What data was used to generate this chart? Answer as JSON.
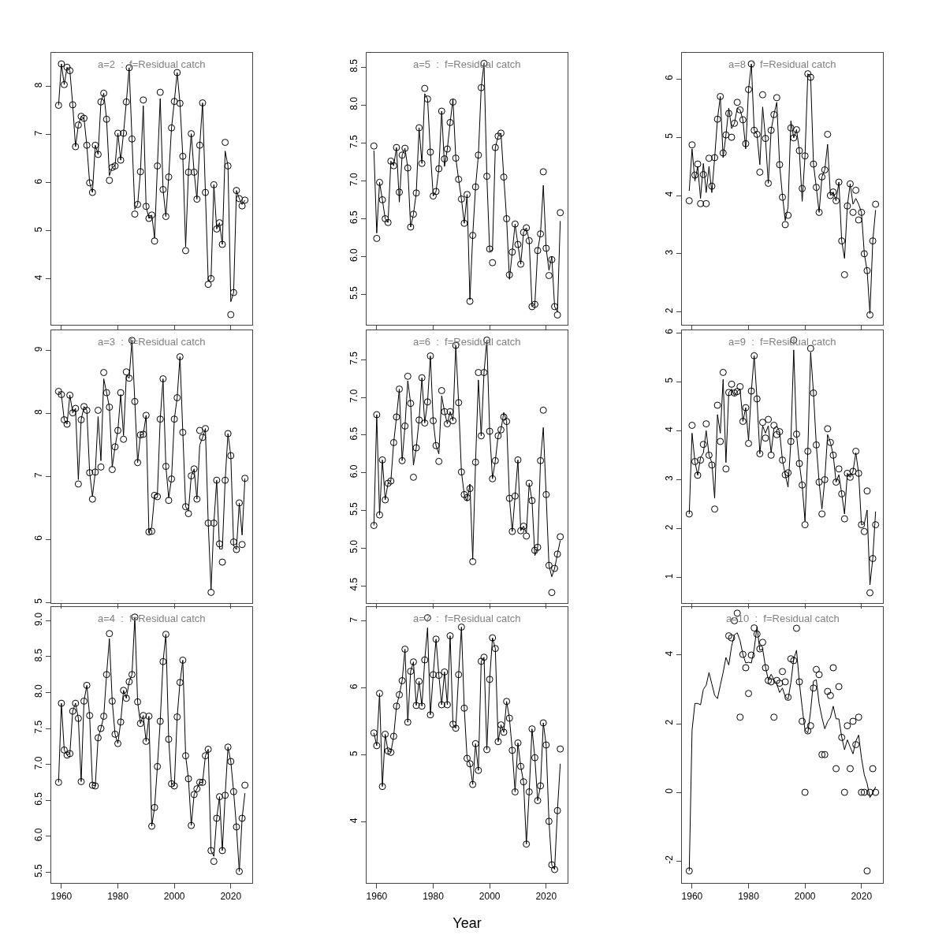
{
  "chart_data": [
    {
      "type": "scatter",
      "title": "a=2  :  f=Residual catch",
      "x": [
        1959,
        1960,
        1961,
        1962,
        1963,
        1964,
        1965,
        1966,
        1967,
        1968,
        1969,
        1970,
        1971,
        1972,
        1973,
        1974,
        1975,
        1976,
        1977,
        1978,
        1979,
        1980,
        1981,
        1982,
        1983,
        1984,
        1985,
        1986,
        1987,
        1988,
        1989,
        1990,
        1991,
        1992,
        1993,
        1994,
        1995,
        1996,
        1997,
        1998,
        1999,
        2000,
        2001,
        2002,
        2003,
        2004,
        2005,
        2006,
        2007,
        2008,
        2009,
        2010,
        2011,
        2012,
        2013,
        2014,
        2015,
        2016,
        2017,
        2018,
        2019,
        2020,
        2021,
        2022,
        2023,
        2024,
        2025
      ],
      "series": [
        {
          "type": "scatter",
          "marker": "circle",
          "color": "#000000",
          "values": [
            7.61,
            8.47,
            8.04,
            8.4,
            8.33,
            7.62,
            6.75,
            7.2,
            7.38,
            7.34,
            6.78,
            6.0,
            5.8,
            6.78,
            6.59,
            7.68,
            7.86,
            7.32,
            6.05,
            6.32,
            6.35,
            7.03,
            6.47,
            7.03,
            7.68,
            8.39,
            6.91,
            5.35,
            5.55,
            6.23,
            7.72,
            5.51,
            5.26,
            5.33,
            4.79,
            6.35,
            7.88,
            5.86,
            5.3,
            6.12,
            7.14,
            7.69,
            8.29,
            7.65,
            6.55,
            4.59,
            6.22,
            7.02,
            6.22,
            5.66,
            6.78,
            7.66,
            5.8,
            3.89,
            4.01,
            5.96,
            5.04,
            5.17,
            4.72,
            6.84,
            6.35,
            3.26,
            3.72,
            5.84,
            5.67,
            5.52,
            5.64
          ]
        },
        {
          "type": "line",
          "marker": "none",
          "color": "#000000",
          "values": [
            7.61,
            8.47,
            8.04,
            8.4,
            8.33,
            7.62,
            6.75,
            7.2,
            7.38,
            7.34,
            6.78,
            6.0,
            5.8,
            6.78,
            6.59,
            7.68,
            7.86,
            7.32,
            6.15,
            6.32,
            6.35,
            7.03,
            6.47,
            7.03,
            7.68,
            8.39,
            6.91,
            5.45,
            5.55,
            6.23,
            7.6,
            5.51,
            5.26,
            5.33,
            4.85,
            6.35,
            7.75,
            5.86,
            5.3,
            6.12,
            7.14,
            7.69,
            8.29,
            7.65,
            6.55,
            4.67,
            6.22,
            7.02,
            6.22,
            5.66,
            6.78,
            7.66,
            5.8,
            3.95,
            4.01,
            5.96,
            5.04,
            5.17,
            4.72,
            6.66,
            6.35,
            3.53,
            3.72,
            5.84,
            5.67,
            5.55,
            5.64
          ]
        }
      ],
      "xlim": [
        1956.4,
        2027.6
      ],
      "xticks": [
        1960,
        1980,
        2000,
        2020
      ],
      "ylim": [
        3.05,
        8.7
      ],
      "yticks": [
        4,
        5,
        6,
        7,
        8
      ],
      "tick_labels": "y",
      "grid": false
    },
    {
      "type": "scatter",
      "title": "a=5  :  f=Residual catch",
      "x": [
        1959,
        1960,
        1961,
        1962,
        1963,
        1964,
        1965,
        1966,
        1967,
        1968,
        1969,
        1970,
        1971,
        1972,
        1973,
        1974,
        1975,
        1976,
        1977,
        1978,
        1979,
        1980,
        1981,
        1982,
        1983,
        1984,
        1985,
        1986,
        1987,
        1988,
        1989,
        1990,
        1991,
        1992,
        1993,
        1994,
        1995,
        1996,
        1997,
        1998,
        1999,
        2000,
        2001,
        2002,
        2003,
        2004,
        2005,
        2006,
        2007,
        2008,
        2009,
        2010,
        2011,
        2012,
        2013,
        2014,
        2015,
        2016,
        2017,
        2018,
        2019,
        2020,
        2021,
        2022,
        2023,
        2024,
        2025
      ],
      "series": [
        {
          "type": "scatter",
          "marker": "circle",
          "color": "#000000",
          "values": [
            7.46,
            6.24,
            6.98,
            6.75,
            6.5,
            6.45,
            7.26,
            7.2,
            7.44,
            6.85,
            7.34,
            7.43,
            7.17,
            6.39,
            6.56,
            6.84,
            7.7,
            7.23,
            8.22,
            8.08,
            7.38,
            6.8,
            6.86,
            7.16,
            7.92,
            7.29,
            7.42,
            7.77,
            8.04,
            7.3,
            7.02,
            6.76,
            6.44,
            6.82,
            5.41,
            6.28,
            6.92,
            7.34,
            8.23,
            8.55,
            7.06,
            6.1,
            5.92,
            7.44,
            7.59,
            7.63,
            7.05,
            6.5,
            5.76,
            6.06,
            6.43,
            6.16,
            5.9,
            6.32,
            6.38,
            6.21,
            5.34,
            5.37,
            6.08,
            6.3,
            7.12,
            6.11,
            5.75,
            5.96,
            5.34,
            5.23,
            6.58
          ]
        },
        {
          "type": "line",
          "marker": "none",
          "color": "#000000",
          "values": [
            7.4,
            6.31,
            6.98,
            6.75,
            6.5,
            6.45,
            7.26,
            7.2,
            7.44,
            6.72,
            7.34,
            7.43,
            7.17,
            6.39,
            6.56,
            6.84,
            7.7,
            7.23,
            8.15,
            8.08,
            7.38,
            6.8,
            6.86,
            7.16,
            7.92,
            7.19,
            7.42,
            7.77,
            8.08,
            7.3,
            7.02,
            6.76,
            6.44,
            6.82,
            5.43,
            6.28,
            6.92,
            7.34,
            8.23,
            8.55,
            7.06,
            6.07,
            6.09,
            7.44,
            7.59,
            7.63,
            7.05,
            6.5,
            5.7,
            6.06,
            6.43,
            6.16,
            5.9,
            6.32,
            6.38,
            6.21,
            5.34,
            5.37,
            6.08,
            6.3,
            6.94,
            6.11,
            5.82,
            6.0,
            5.34,
            5.27,
            6.47
          ]
        }
      ],
      "xlim": [
        1956.4,
        2027.6
      ],
      "xticks": [
        1960,
        1980,
        2000,
        2020
      ],
      "ylim": [
        5.1,
        8.69
      ],
      "yticks": [
        5.5,
        {
          "value": 6,
          "label": "6.0"
        },
        6.5,
        {
          "value": 7,
          "label": "7.0"
        },
        7.5,
        {
          "value": 8,
          "label": "8.0"
        },
        8.5
      ],
      "tick_labels": "y",
      "grid": false
    },
    {
      "type": "scatter",
      "title": "a=8  :  f=Residual catch",
      "x": [
        1959,
        1960,
        1961,
        1962,
        1963,
        1964,
        1965,
        1966,
        1967,
        1968,
        1969,
        1970,
        1971,
        1972,
        1973,
        1974,
        1975,
        1976,
        1977,
        1978,
        1979,
        1980,
        1981,
        1982,
        1983,
        1984,
        1985,
        1986,
        1987,
        1988,
        1989,
        1990,
        1991,
        1992,
        1993,
        1994,
        1995,
        1996,
        1997,
        1998,
        1999,
        2000,
        2001,
        2002,
        2003,
        2004,
        2005,
        2006,
        2007,
        2008,
        2009,
        2010,
        2011,
        2012,
        2013,
        2014,
        2015,
        2016,
        2017,
        2018,
        2019,
        2020,
        2021,
        2022,
        2023,
        2024,
        2025
      ],
      "series": [
        {
          "type": "scatter",
          "marker": "circle",
          "color": "#000000",
          "values": [
            3.91,
            4.87,
            4.35,
            4.54,
            3.86,
            4.36,
            3.86,
            4.64,
            4.16,
            4.65,
            5.31,
            5.7,
            4.73,
            5.04,
            5.41,
            5.0,
            5.24,
            5.6,
            5.47,
            5.3,
            4.89,
            5.82,
            6.26,
            5.12,
            5.05,
            4.4,
            5.73,
            4.98,
            4.21,
            5.12,
            5.39,
            5.68,
            4.53,
            3.97,
            3.5,
            3.66,
            5.16,
            4.99,
            5.13,
            4.77,
            4.12,
            4.68,
            6.09,
            6.03,
            4.54,
            4.14,
            3.71,
            4.32,
            4.44,
            5.05,
            4.0,
            4.06,
            3.91,
            4.23,
            3.22,
            2.64,
            3.82,
            4.2,
            3.71,
            4.09,
            3.58,
            3.71,
            3.0,
            2.71,
            1.95,
            3.22,
            3.85
          ]
        },
        {
          "type": "line",
          "marker": "none",
          "color": "#000000",
          "values": [
            4.08,
            4.8,
            4.25,
            4.5,
            3.95,
            4.55,
            4.05,
            4.5,
            4.05,
            4.65,
            5.31,
            5.7,
            4.65,
            5.04,
            5.5,
            5.15,
            5.24,
            5.5,
            5.47,
            5.3,
            4.8,
            5.82,
            6.26,
            5.12,
            5.05,
            4.53,
            5.52,
            4.98,
            4.21,
            5.12,
            5.39,
            5.6,
            4.53,
            4.0,
            3.57,
            3.8,
            5.28,
            4.99,
            5.13,
            4.77,
            3.9,
            4.68,
            6.09,
            6.03,
            4.54,
            4.14,
            3.71,
            4.32,
            4.44,
            4.88,
            4.0,
            4.06,
            3.91,
            4.23,
            3.22,
            2.92,
            3.82,
            4.2,
            3.85,
            3.95,
            3.85,
            3.71,
            3.0,
            2.71,
            1.97,
            3.22,
            3.75
          ]
        }
      ],
      "xlim": [
        1956.4,
        2027.6
      ],
      "xticks": [
        1960,
        1980,
        2000,
        2020
      ],
      "ylim": [
        1.78,
        6.45
      ],
      "yticks": [
        2,
        3,
        4,
        5,
        6
      ],
      "tick_labels": "y",
      "grid": false
    },
    {
      "type": "scatter",
      "title": "a=3  :  f=Residual catch",
      "x": [
        1959,
        1960,
        1961,
        1962,
        1963,
        1964,
        1965,
        1966,
        1967,
        1968,
        1969,
        1970,
        1971,
        1972,
        1973,
        1974,
        1975,
        1976,
        1977,
        1978,
        1979,
        1980,
        1981,
        1982,
        1983,
        1984,
        1985,
        1986,
        1987,
        1988,
        1989,
        1990,
        1991,
        1992,
        1993,
        1994,
        1995,
        1996,
        1997,
        1998,
        1999,
        2000,
        2001,
        2002,
        2003,
        2004,
        2005,
        2006,
        2007,
        2008,
        2009,
        2010,
        2011,
        2012,
        2013,
        2014,
        2015,
        2016,
        2017,
        2018,
        2019,
        2020,
        2021,
        2022,
        2023,
        2024,
        2025
      ],
      "series": [
        {
          "type": "scatter",
          "marker": "circle",
          "color": "#000000",
          "values": [
            8.35,
            8.3,
            7.9,
            7.83,
            8.29,
            8.01,
            8.08,
            6.88,
            7.9,
            8.11,
            8.05,
            7.06,
            6.64,
            7.07,
            8.05,
            7.15,
            8.65,
            8.33,
            8.1,
            7.11,
            7.47,
            7.73,
            8.33,
            7.59,
            8.66,
            8.56,
            9.16,
            8.19,
            7.22,
            7.66,
            7.67,
            7.97,
            6.12,
            6.13,
            6.7,
            6.68,
            7.91,
            8.55,
            7.16,
            6.62,
            6.96,
            7.91,
            8.25,
            8.9,
            7.7,
            6.52,
            6.41,
            7.01,
            7.12,
            6.64,
            7.73,
            7.62,
            7.76,
            6.26,
            5.16,
            6.26,
            6.94,
            5.93,
            5.64,
            6.94,
            7.68,
            7.33,
            5.96,
            5.84,
            6.58,
            5.92,
            6.97
          ]
        },
        {
          "type": "line",
          "marker": "none",
          "color": "#000000",
          "values": [
            8.35,
            8.3,
            7.9,
            7.83,
            8.29,
            8.01,
            8.08,
            6.95,
            7.9,
            8.11,
            8.05,
            7.06,
            6.68,
            7.07,
            7.95,
            7.25,
            8.55,
            8.33,
            8.1,
            7.15,
            7.47,
            7.73,
            8.3,
            7.65,
            8.6,
            8.56,
            9.16,
            8.19,
            7.22,
            7.66,
            7.67,
            7.97,
            6.1,
            6.2,
            6.7,
            6.72,
            7.91,
            8.55,
            7.16,
            6.66,
            6.96,
            7.91,
            8.25,
            8.9,
            7.7,
            6.52,
            6.45,
            7.01,
            7.12,
            6.64,
            7.5,
            7.62,
            7.76,
            6.26,
            5.2,
            6.26,
            6.94,
            5.85,
            5.85,
            6.94,
            7.68,
            7.33,
            5.9,
            5.84,
            6.58,
            6.07,
            6.97
          ]
        }
      ],
      "xlim": [
        1956.4,
        2027.6
      ],
      "xticks": [
        1960,
        1980,
        2000,
        2020
      ],
      "ylim": [
        4.99,
        9.32
      ],
      "yticks": [
        5,
        6,
        7,
        8,
        9
      ],
      "tick_labels": "y",
      "grid": false
    },
    {
      "type": "scatter",
      "title": "a=6  :  f=Residual catch",
      "x": [
        1959,
        1960,
        1961,
        1962,
        1963,
        1964,
        1965,
        1966,
        1967,
        1968,
        1969,
        1970,
        1971,
        1972,
        1973,
        1974,
        1975,
        1976,
        1977,
        1978,
        1979,
        1980,
        1981,
        1982,
        1983,
        1984,
        1985,
        1986,
        1987,
        1988,
        1989,
        1990,
        1991,
        1992,
        1993,
        1994,
        1995,
        1996,
        1997,
        1998,
        1999,
        2000,
        2001,
        2002,
        2003,
        2004,
        2005,
        2006,
        2007,
        2008,
        2009,
        2010,
        2011,
        2012,
        2013,
        2014,
        2015,
        2016,
        2017,
        2018,
        2019,
        2020,
        2021,
        2022,
        2023,
        2024,
        2025
      ],
      "series": [
        {
          "type": "scatter",
          "marker": "circle",
          "color": "#000000",
          "values": [
            5.3,
            6.77,
            5.44,
            6.17,
            5.64,
            5.86,
            5.89,
            6.4,
            6.74,
            7.11,
            6.16,
            6.62,
            7.28,
            6.92,
            5.94,
            6.33,
            6.7,
            7.26,
            6.66,
            6.94,
            7.55,
            6.69,
            6.36,
            6.15,
            7.09,
            6.81,
            6.65,
            6.81,
            6.69,
            7.69,
            6.93,
            6.01,
            5.71,
            5.67,
            5.79,
            4.82,
            6.14,
            7.33,
            6.49,
            7.33,
            7.76,
            6.55,
            5.92,
            6.16,
            6.49,
            6.57,
            6.74,
            6.68,
            5.66,
            5.22,
            5.69,
            6.17,
            5.23,
            5.29,
            5.16,
            5.86,
            5.63,
            4.97,
            5.01,
            6.16,
            6.83,
            5.71,
            4.77,
            4.41,
            4.73,
            4.92,
            5.15
          ]
        },
        {
          "type": "line",
          "marker": "none",
          "color": "#000000",
          "values": [
            5.3,
            6.77,
            5.44,
            6.17,
            5.64,
            5.86,
            5.89,
            6.4,
            6.74,
            7.11,
            6.16,
            6.62,
            7.22,
            6.92,
            6.1,
            6.33,
            6.7,
            7.26,
            6.66,
            6.94,
            7.55,
            6.69,
            6.36,
            6.25,
            7.02,
            6.81,
            6.65,
            6.81,
            6.69,
            7.69,
            6.93,
            6.01,
            5.71,
            5.62,
            5.85,
            4.85,
            6.14,
            7.23,
            6.49,
            7.33,
            7.76,
            6.55,
            5.92,
            6.16,
            6.49,
            6.57,
            6.8,
            6.68,
            5.66,
            5.22,
            5.69,
            6.17,
            5.23,
            5.29,
            5.2,
            5.86,
            5.63,
            4.9,
            5.01,
            6.16,
            6.6,
            5.71,
            4.77,
            4.62,
            4.73,
            4.92,
            5.1
          ]
        }
      ],
      "xlim": [
        1956.4,
        2027.6
      ],
      "xticks": [
        1960,
        1980,
        2000,
        2020
      ],
      "ylim": [
        4.27,
        7.89
      ],
      "yticks": [
        4.5,
        {
          "value": 5,
          "label": "5.0"
        },
        5.5,
        {
          "value": 6,
          "label": "6.0"
        },
        6.5,
        {
          "value": 7,
          "label": "7.0"
        },
        7.5
      ],
      "tick_labels": "y",
      "grid": false
    },
    {
      "type": "scatter",
      "title": "a=9  :  f=Residual catch",
      "x": [
        1959,
        1960,
        1961,
        1962,
        1963,
        1964,
        1965,
        1966,
        1967,
        1968,
        1969,
        1970,
        1971,
        1972,
        1973,
        1974,
        1975,
        1976,
        1977,
        1978,
        1979,
        1980,
        1981,
        1982,
        1983,
        1984,
        1985,
        1986,
        1987,
        1988,
        1989,
        1990,
        1991,
        1992,
        1993,
        1994,
        1995,
        1996,
        1997,
        1998,
        1999,
        2000,
        2001,
        2002,
        2003,
        2004,
        2005,
        2006,
        2007,
        2008,
        2009,
        2010,
        2011,
        2012,
        2013,
        2014,
        2015,
        2016,
        2017,
        2018,
        2019,
        2020,
        2021,
        2022,
        2023,
        2024,
        2025
      ],
      "series": [
        {
          "type": "scatter",
          "marker": "circle",
          "color": "#000000",
          "values": [
            2.3,
            4.11,
            3.37,
            3.09,
            3.4,
            3.72,
            4.14,
            3.5,
            3.3,
            2.4,
            4.52,
            3.78,
            5.19,
            3.22,
            4.78,
            4.95,
            4.77,
            4.8,
            4.9,
            4.19,
            4.47,
            3.74,
            4.81,
            5.53,
            4.65,
            3.53,
            4.17,
            3.85,
            4.23,
            3.5,
            4.11,
            3.92,
            3.98,
            3.4,
            3.1,
            3.14,
            3.78,
            5.85,
            3.93,
            3.33,
            2.89,
            2.08,
            3.58,
            5.68,
            4.77,
            3.71,
            2.95,
            2.3,
            3.0,
            4.04,
            3.76,
            3.5,
            2.95,
            3.22,
            2.71,
            2.2,
            3.13,
            3.05,
            3.17,
            3.58,
            3.13,
            2.08,
            1.94,
            2.77,
            0.69,
            1.39,
            2.08
          ]
        },
        {
          "type": "line",
          "marker": "none",
          "color": "#000000",
          "values": [
            2.3,
            3.95,
            3.37,
            3.09,
            3.45,
            3.55,
            4.0,
            3.5,
            3.35,
            2.62,
            4.33,
            3.95,
            5.05,
            3.35,
            4.78,
            4.85,
            4.72,
            4.8,
            4.85,
            4.19,
            4.47,
            3.8,
            4.81,
            5.53,
            4.65,
            3.53,
            4.1,
            3.95,
            4.1,
            3.55,
            4.05,
            4.1,
            3.98,
            3.4,
            3.1,
            2.85,
            3.78,
            5.65,
            3.93,
            3.33,
            2.89,
            2.15,
            3.58,
            5.6,
            4.77,
            3.71,
            2.95,
            2.4,
            3.0,
            3.92,
            3.76,
            3.5,
            2.95,
            3.1,
            2.71,
            2.3,
            3.13,
            3.05,
            3.17,
            3.55,
            3.13,
            2.08,
            2.1,
            2.38,
            0.85,
            1.39,
            2.35
          ]
        }
      ],
      "xlim": [
        1956.4,
        2027.6
      ],
      "xticks": [
        1960,
        1980,
        2000,
        2020
      ],
      "ylim": [
        0.48,
        6.05
      ],
      "yticks": [
        1,
        2,
        3,
        4,
        5,
        6
      ],
      "tick_labels": "y",
      "grid": false
    },
    {
      "type": "scatter",
      "title": "a=4  :  f=Residual catch",
      "x": [
        1959,
        1960,
        1961,
        1962,
        1963,
        1964,
        1965,
        1966,
        1967,
        1968,
        1969,
        1970,
        1971,
        1972,
        1973,
        1974,
        1975,
        1976,
        1977,
        1978,
        1979,
        1980,
        1981,
        1982,
        1983,
        1984,
        1985,
        1986,
        1987,
        1988,
        1989,
        1990,
        1991,
        1992,
        1993,
        1994,
        1995,
        1996,
        1997,
        1998,
        1999,
        2000,
        2001,
        2002,
        2003,
        2004,
        2005,
        2006,
        2007,
        2008,
        2009,
        2010,
        2011,
        2012,
        2013,
        2014,
        2015,
        2016,
        2017,
        2018,
        2019,
        2020,
        2021,
        2022,
        2023,
        2024,
        2025
      ],
      "series": [
        {
          "type": "scatter",
          "marker": "circle",
          "color": "#000000",
          "values": [
            6.75,
            7.85,
            7.2,
            7.13,
            7.15,
            7.74,
            7.85,
            7.64,
            6.76,
            7.88,
            8.1,
            7.68,
            6.71,
            6.7,
            7.37,
            7.5,
            7.67,
            8.25,
            8.82,
            7.88,
            7.42,
            7.29,
            7.59,
            8.03,
            7.92,
            8.15,
            8.25,
            9.05,
            7.87,
            7.57,
            7.68,
            7.32,
            7.67,
            6.14,
            6.4,
            6.97,
            7.6,
            8.43,
            8.81,
            7.35,
            6.73,
            6.7,
            7.66,
            8.14,
            8.45,
            7.12,
            6.8,
            6.15,
            6.58,
            6.66,
            6.75,
            6.75,
            7.12,
            7.21,
            5.8,
            5.65,
            6.25,
            6.55,
            5.8,
            6.57,
            7.24,
            7.04,
            6.62,
            6.13,
            5.51,
            6.25,
            6.71
          ]
        },
        {
          "type": "line",
          "marker": "none",
          "color": "#000000",
          "values": [
            6.75,
            7.85,
            7.2,
            7.13,
            7.15,
            7.74,
            7.85,
            7.64,
            6.76,
            7.88,
            8.1,
            7.68,
            6.71,
            6.7,
            7.37,
            7.5,
            7.67,
            8.25,
            8.75,
            7.88,
            7.42,
            7.29,
            7.59,
            8.03,
            7.92,
            8.15,
            8.25,
            9.05,
            7.87,
            7.57,
            7.68,
            7.32,
            7.67,
            6.14,
            6.4,
            6.97,
            7.6,
            8.43,
            8.81,
            7.35,
            6.73,
            6.7,
            7.66,
            8.14,
            8.45,
            7.12,
            6.8,
            6.15,
            6.58,
            6.66,
            6.75,
            6.75,
            7.12,
            7.21,
            5.8,
            5.72,
            6.25,
            6.55,
            5.8,
            6.57,
            7.24,
            7.04,
            6.62,
            6.13,
            5.51,
            6.25,
            6.6
          ]
        }
      ],
      "xlim": [
        1956.4,
        2027.6
      ],
      "xticks": [
        1960,
        1980,
        2000,
        2020
      ],
      "ylim": [
        5.35,
        9.19
      ],
      "yticks": [
        5.5,
        {
          "value": 6,
          "label": "6.0"
        },
        6.5,
        {
          "value": 7,
          "label": "7.0"
        },
        7.5,
        {
          "value": 8,
          "label": "8.0"
        },
        8.5,
        {
          "value": 9,
          "label": "9.0"
        }
      ],
      "grid": false
    },
    {
      "type": "scatter",
      "title": "a=7  :  f=Residual catch",
      "xlabel": "Year",
      "x": [
        1959,
        1960,
        1961,
        1962,
        1963,
        1964,
        1965,
        1966,
        1967,
        1968,
        1969,
        1970,
        1971,
        1972,
        1973,
        1974,
        1975,
        1976,
        1977,
        1978,
        1979,
        1980,
        1981,
        1982,
        1983,
        1984,
        1985,
        1986,
        1987,
        1988,
        1989,
        1990,
        1991,
        1992,
        1993,
        1994,
        1995,
        1996,
        1997,
        1998,
        1999,
        2000,
        2001,
        2002,
        2003,
        2004,
        2005,
        2006,
        2007,
        2008,
        2009,
        2010,
        2011,
        2012,
        2013,
        2014,
        2015,
        2016,
        2017,
        2018,
        2019,
        2020,
        2021,
        2022,
        2023,
        2024,
        2025
      ],
      "series": [
        {
          "type": "scatter",
          "marker": "circle",
          "color": "#000000",
          "values": [
            5.33,
            5.14,
            5.92,
            4.53,
            5.31,
            5.06,
            5.04,
            5.28,
            5.73,
            5.9,
            6.11,
            6.58,
            5.49,
            6.25,
            6.39,
            5.74,
            6.1,
            5.73,
            6.42,
            7.05,
            5.6,
            6.2,
            6.73,
            6.19,
            5.75,
            6.24,
            5.75,
            6.78,
            5.46,
            5.4,
            6.2,
            6.91,
            5.7,
            4.95,
            4.87,
            4.56,
            5.17,
            4.77,
            6.4,
            6.46,
            5.08,
            6.13,
            6.75,
            6.59,
            5.2,
            5.45,
            5.34,
            5.8,
            5.55,
            5.07,
            4.45,
            5.18,
            4.83,
            4.6,
            3.67,
            4.45,
            5.39,
            4.96,
            4.32,
            4.54,
            5.48,
            5.15,
            4.01,
            3.36,
            3.29,
            4.17,
            5.09
          ]
        },
        {
          "type": "line",
          "marker": "none",
          "color": "#000000",
          "values": [
            5.33,
            5.14,
            5.92,
            4.53,
            5.31,
            5.06,
            5.04,
            5.28,
            5.73,
            5.9,
            6.11,
            6.58,
            5.49,
            6.25,
            6.39,
            5.74,
            6.1,
            5.73,
            6.42,
            6.9,
            5.6,
            6.2,
            6.73,
            6.19,
            5.75,
            6.24,
            5.75,
            6.78,
            5.46,
            5.4,
            6.2,
            6.91,
            5.7,
            4.95,
            4.87,
            4.56,
            5.17,
            4.77,
            6.4,
            6.46,
            5.08,
            6.13,
            6.75,
            6.59,
            5.2,
            5.45,
            5.34,
            5.8,
            5.55,
            5.07,
            4.45,
            5.18,
            4.83,
            4.6,
            3.67,
            4.45,
            5.39,
            4.96,
            4.32,
            4.54,
            5.48,
            5.15,
            4.01,
            3.36,
            3.29,
            4.17,
            4.87
          ]
        }
      ],
      "xlim": [
        1956.4,
        2027.6
      ],
      "xticks": [
        1960,
        1980,
        2000,
        2020
      ],
      "ylim": [
        3.09,
        7.21
      ],
      "yticks": [
        4,
        5,
        6,
        7
      ],
      "grid": false
    },
    {
      "type": "scatter",
      "title": "a=10  :  f=Residual catch",
      "x": [
        1959,
        1960,
        1961,
        1962,
        1963,
        1964,
        1965,
        1966,
        1967,
        1968,
        1969,
        1970,
        1971,
        1972,
        1973,
        1974,
        1975,
        1976,
        1977,
        1978,
        1979,
        1980,
        1981,
        1982,
        1983,
        1984,
        1985,
        1986,
        1987,
        1988,
        1989,
        1990,
        1991,
        1992,
        1993,
        1994,
        1995,
        1996,
        1997,
        1998,
        1999,
        2000,
        2001,
        2002,
        2003,
        2004,
        2005,
        2006,
        2007,
        2008,
        2009,
        2010,
        2011,
        2012,
        2013,
        2014,
        2015,
        2016,
        2017,
        2018,
        2019,
        2020,
        2021,
        2022,
        2023,
        2024,
        2025
      ],
      "series": [
        {
          "type": "scatter",
          "marker": "circle",
          "color": "#000000",
          "values": [
            -2.29,
            null,
            null,
            null,
            null,
            null,
            null,
            null,
            null,
            null,
            null,
            null,
            null,
            null,
            4.56,
            4.5,
            5.0,
            5.22,
            2.19,
            4.02,
            3.63,
            2.88,
            4.0,
            4.79,
            4.61,
            4.18,
            4.37,
            3.63,
            3.26,
            3.22,
            2.19,
            3.26,
            3.18,
            3.52,
            3.22,
            2.77,
            3.89,
            3.84,
            4.78,
            3.22,
            2.07,
            0.0,
            1.79,
            1.94,
            3.04,
            3.58,
            3.43,
            1.1,
            1.1,
            2.94,
            2.82,
            3.63,
            0.69,
            3.08,
            1.6,
            0.0,
            1.94,
            0.69,
            2.07,
            1.39,
            2.19,
            0.0,
            0.0,
            -2.29,
            0.0,
            0.69,
            0.0
          ]
        },
        {
          "type": "line",
          "marker": "none",
          "color": "#000000",
          "values": [
            -2.29,
            1.81,
            2.59,
            2.59,
            2.55,
            3.0,
            3.12,
            3.49,
            3.16,
            2.83,
            2.73,
            3.12,
            3.49,
            3.93,
            3.71,
            4.26,
            4.59,
            4.65,
            4.42,
            4.02,
            3.77,
            3.79,
            3.77,
            4.18,
            4.83,
            4.14,
            4.18,
            3.65,
            3.28,
            3.44,
            3.28,
            3.16,
            2.91,
            3.04,
            2.79,
            2.71,
            3.2,
            3.89,
            4.14,
            3.2,
            2.47,
            1.81,
            1.73,
            2.38,
            3.24,
            3.28,
            2.59,
            2.18,
            1.85,
            2.06,
            2.18,
            2.51,
            2.14,
            2.14,
            1.61,
            1.24,
            1.53,
            1.32,
            1.12,
            1.49,
            1.67,
            1.0,
            0.51,
            0.26,
            -0.15,
            -0.02,
            0.16
          ]
        }
      ],
      "xlim": [
        1956.4,
        2027.6
      ],
      "xticks": [
        1960,
        1980,
        2000,
        2020
      ],
      "ylim": [
        -2.64,
        5.4
      ],
      "yticks": [
        -2,
        0,
        2,
        4
      ],
      "grid": false
    }
  ]
}
